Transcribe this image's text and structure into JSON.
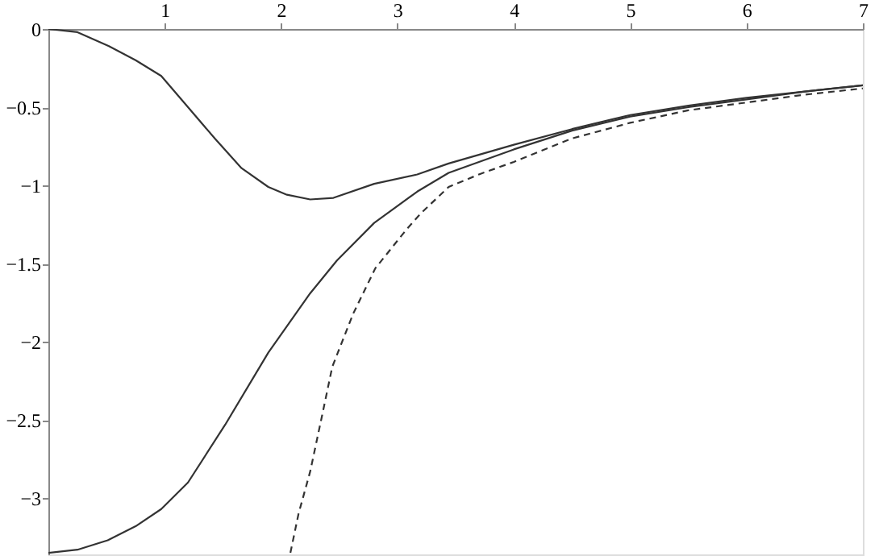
{
  "chart_data": {
    "type": "line",
    "xlim": [
      0,
      7
    ],
    "ylim": [
      -3.36,
      0
    ],
    "xticks": [
      1,
      2,
      3,
      4,
      5,
      6,
      7
    ],
    "yticks": [
      0,
      -0.5,
      -1,
      -1.5,
      -2,
      -2.5,
      -3
    ],
    "grid": false,
    "marker": "none",
    "series": [
      {
        "color": "#333333",
        "line_style": "solid",
        "x": [
          0,
          0.25,
          0.52,
          0.75,
          0.97,
          1.2,
          1.43,
          1.66,
          1.89,
          2.05,
          2.25,
          2.45,
          2.8,
          3.17,
          3.44,
          4,
          4.5,
          5,
          5.5,
          6,
          6.5,
          7
        ],
        "values": [
          0,
          -0.02,
          -0.11,
          -0.2,
          -0.3,
          -0.5,
          -0.7,
          -0.89,
          -1.01,
          -1.06,
          -1.09,
          -1.08,
          -0.99,
          -0.93,
          -0.86,
          -0.74,
          -0.64,
          -0.55,
          -0.49,
          -0.44,
          -0.4,
          -0.36
        ]
      },
      {
        "color": "#333333",
        "line_style": "solid",
        "x": [
          0,
          0.25,
          0.51,
          0.75,
          0.97,
          1.2,
          1.52,
          1.89,
          2.25,
          2.48,
          2.8,
          3.17,
          3.44,
          4,
          4.5,
          5,
          5.5,
          6,
          6.5,
          7
        ],
        "values": [
          -3.35,
          -3.33,
          -3.27,
          -3.18,
          -3.07,
          -2.9,
          -2.53,
          -2.07,
          -1.69,
          -1.48,
          -1.24,
          -1.04,
          -0.92,
          -0.77,
          -0.65,
          -0.56,
          -0.5,
          -0.45,
          -0.4,
          -0.36
        ]
      },
      {
        "color": "#333333",
        "line_style": "dashed",
        "x": [
          2.08,
          2.15,
          2.25,
          2.35,
          2.44,
          2.62,
          2.81,
          3.08,
          3.2,
          3.44,
          3.7,
          4,
          4.5,
          5,
          5.5,
          6,
          6.5,
          7
        ],
        "values": [
          -3.35,
          -3.1,
          -2.83,
          -2.48,
          -2.16,
          -1.82,
          -1.53,
          -1.28,
          -1.18,
          -1.01,
          -0.93,
          -0.85,
          -0.7,
          -0.6,
          -0.52,
          -0.47,
          -0.42,
          -0.38
        ]
      }
    ]
  }
}
